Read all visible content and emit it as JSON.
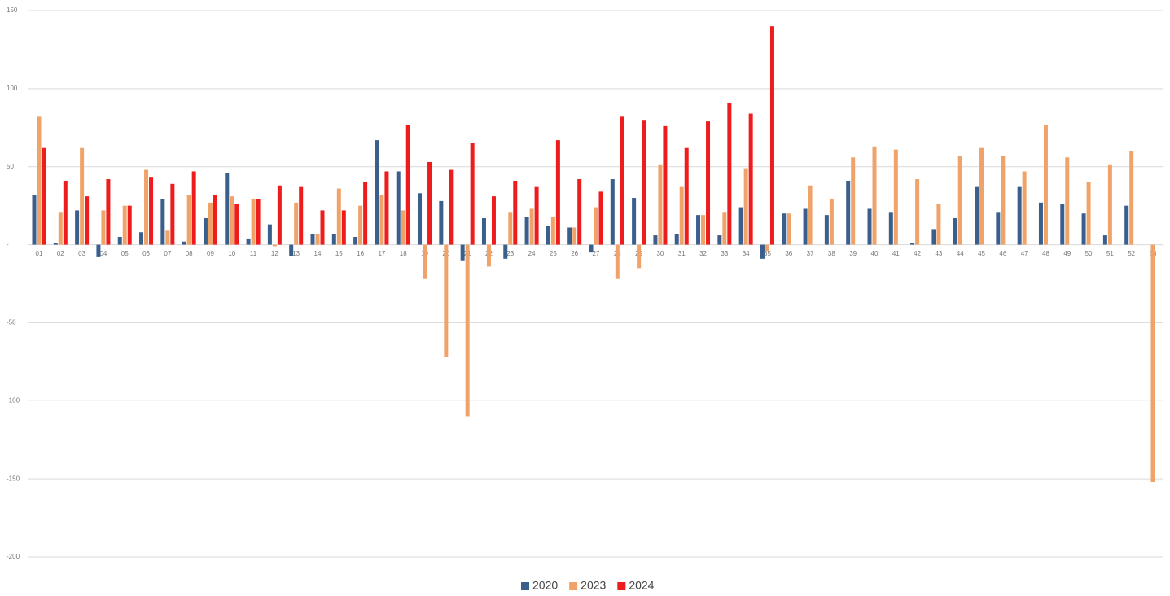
{
  "chart_data": {
    "type": "bar",
    "categories": [
      "01",
      "02",
      "03",
      "04",
      "05",
      "06",
      "07",
      "08",
      "09",
      "10",
      "11",
      "12",
      "13",
      "14",
      "15",
      "16",
      "17",
      "18",
      "19",
      "20",
      "21",
      "22",
      "23",
      "24",
      "25",
      "26",
      "27",
      "28",
      "29",
      "30",
      "31",
      "32",
      "33",
      "34",
      "35",
      "36",
      "37",
      "38",
      "39",
      "40",
      "41",
      "42",
      "43",
      "44",
      "45",
      "46",
      "47",
      "48",
      "49",
      "50",
      "51",
      "52",
      "53"
    ],
    "series": [
      {
        "name": "2020",
        "color": "#3a5f8c",
        "values": [
          32,
          1,
          22,
          -8,
          5,
          8,
          29,
          2,
          17,
          46,
          4,
          13,
          -7,
          7,
          7,
          5,
          67,
          47,
          33,
          28,
          -10,
          17,
          -9,
          18,
          12,
          11,
          -5,
          42,
          30,
          6,
          7,
          19,
          6,
          24,
          -9,
          20,
          23,
          19,
          41,
          23,
          21,
          1,
          10,
          17,
          37,
          21,
          37,
          27,
          26,
          20,
          6,
          25,
          null
        ]
      },
      {
        "name": "2023",
        "color": "#f0a368",
        "values": [
          82,
          21,
          62,
          22,
          25,
          48,
          9,
          32,
          27,
          31,
          29,
          -1,
          27,
          7,
          36,
          25,
          32,
          22,
          -22,
          -72,
          -110,
          -14,
          21,
          23,
          18,
          11,
          24,
          -22,
          -15,
          51,
          37,
          19,
          21,
          49,
          -4,
          20,
          38,
          29,
          56,
          63,
          61,
          42,
          26,
          57,
          62,
          57,
          47,
          77,
          56,
          40,
          51,
          60,
          -152
        ]
      },
      {
        "name": "2024",
        "color": "#ee1c1c",
        "values": [
          62,
          41,
          31,
          42,
          25,
          43,
          39,
          47,
          32,
          26,
          29,
          38,
          37,
          22,
          22,
          40,
          47,
          77,
          53,
          48,
          65,
          31,
          41,
          37,
          67,
          42,
          34,
          82,
          80,
          76,
          62,
          79,
          91,
          84,
          140,
          null,
          null,
          null,
          null,
          null,
          null,
          null,
          null,
          null,
          null,
          null,
          null,
          null,
          null,
          null,
          null,
          null,
          null
        ]
      }
    ],
    "ylim": [
      -200,
      150
    ],
    "yticks": [
      150,
      100,
      50,
      {
        "value": 0,
        "label": "-"
      },
      -50,
      -100,
      -150,
      -200
    ],
    "grid": true,
    "legend": "bottom"
  }
}
